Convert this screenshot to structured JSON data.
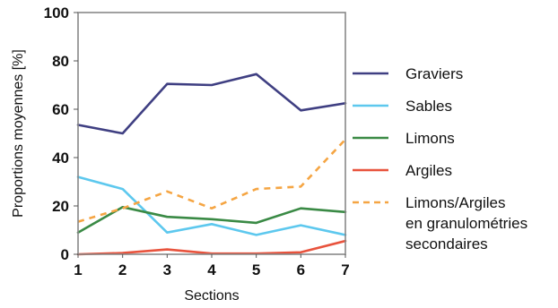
{
  "chart_data": {
    "type": "line",
    "xlabel": "Sections",
    "ylabel": "Proportions moyennes [%]",
    "x": [
      1,
      2,
      3,
      4,
      5,
      6,
      7
    ],
    "xlim": [
      1,
      7
    ],
    "ylim": [
      0,
      100
    ],
    "yticks": [
      0,
      20,
      40,
      60,
      80,
      100
    ],
    "grid": false,
    "legend_position": "right",
    "series": [
      {
        "name": "Graviers",
        "color": "#3f3f82",
        "style": "solid",
        "values": [
          53.5,
          50,
          70.5,
          70,
          74.5,
          59.5,
          62.5
        ]
      },
      {
        "name": "Sables",
        "color": "#5dc8ee",
        "style": "solid",
        "values": [
          32,
          27,
          9,
          12.5,
          8,
          12,
          8
        ]
      },
      {
        "name": "Limons",
        "color": "#3a8a45",
        "style": "solid",
        "values": [
          9,
          19.5,
          15.5,
          14.5,
          13,
          19,
          17.5
        ]
      },
      {
        "name": "Argiles",
        "color": "#e8533d",
        "style": "solid",
        "values": [
          0,
          0.5,
          2,
          0.3,
          0.3,
          0.8,
          5.5
        ]
      },
      {
        "name": "Limons/Argiles en granulométries secondaires",
        "legend_lines": [
          "Limons/Argiles",
          "en granulométries",
          "secondaires"
        ],
        "color": "#f5a543",
        "style": "dashed",
        "values": [
          13.5,
          19,
          26,
          19,
          27,
          28,
          47.5
        ]
      }
    ]
  }
}
